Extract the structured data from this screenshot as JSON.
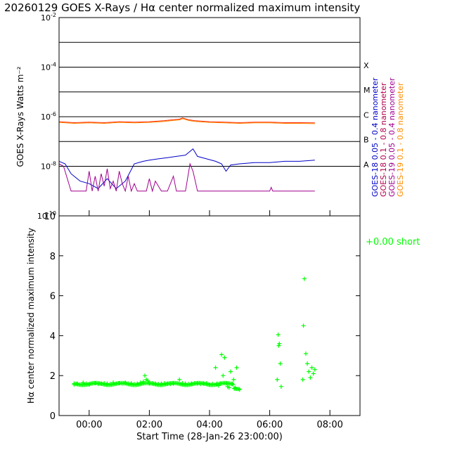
{
  "title": "20260129 GOES X-Rays / Hα center normalized maximum intensity",
  "colors": {
    "goes18_long": "#0000c8",
    "goes18_short": "#b0004a",
    "goes19_long": "#a00090",
    "goes19_short": "#ff8c00",
    "overlay_red": "#ff2000",
    "halpha": "#00ff00",
    "axis": "#000000"
  },
  "chart_data": [
    {
      "type": "line",
      "title": "GOES X-Rays",
      "ylabel": "GOES X-Rays Watts m⁻²",
      "yscale": "log",
      "ylim_exp": [
        -10,
        -2
      ],
      "ytick_labels": [
        {
          "base": "10",
          "exp": "-2",
          "value_exp": -2
        },
        {
          "base": "10",
          "exp": "-4",
          "value_exp": -4
        },
        {
          "base": "10",
          "exp": "-6",
          "value_exp": -6
        },
        {
          "base": "10",
          "exp": "-8",
          "value_exp": -8
        },
        {
          "base": "10",
          "exp": "-10",
          "value_exp": -10
        }
      ],
      "flare_class_labels": [
        {
          "label": "X",
          "value_exp": -3.9
        },
        {
          "label": "M",
          "value_exp": -4.9
        },
        {
          "label": "C",
          "value_exp": -5.9
        },
        {
          "label": "B",
          "value_exp": -6.9
        },
        {
          "label": "A",
          "value_exp": -7.9
        }
      ],
      "gridlines_exp": [
        -3,
        -4,
        -5,
        -6,
        -7,
        -8
      ],
      "xlim_hours": [
        -1.0,
        9.0
      ],
      "legend": [
        "GOES-18 0.05 - 0.4 nanometer",
        "GOES-18 0.1 - 0.8 nanometer",
        "GOES-19 0.05 - 0.4 nanometer",
        "GOES-19 0.1 - 0.8 nanometer"
      ],
      "series": [
        {
          "name": "GOES-18 0.1 - 0.8 nanometer",
          "color_key": "overlay_red",
          "x": [
            -1.0,
            -0.5,
            0.0,
            0.5,
            1.0,
            1.5,
            2.0,
            2.5,
            2.8,
            3.0,
            3.1,
            3.3,
            3.5,
            4.0,
            4.5,
            5.0,
            5.5,
            6.0,
            6.5,
            7.0,
            7.5
          ],
          "y_exp": [
            -6.2,
            -6.24,
            -6.22,
            -6.24,
            -6.2,
            -6.22,
            -6.2,
            -6.16,
            -6.12,
            -6.1,
            -6.05,
            -6.12,
            -6.16,
            -6.2,
            -6.22,
            -6.24,
            -6.22,
            -6.22,
            -6.24,
            -6.24,
            -6.25
          ]
        },
        {
          "name": "GOES-19 0.1 - 0.8 nanometer",
          "color_key": "goes19_short",
          "x": [
            -1.0,
            -0.5,
            0.0,
            0.5,
            1.0,
            1.5,
            2.0,
            2.5,
            2.8,
            3.0,
            3.1,
            3.3,
            3.5,
            4.0,
            4.5,
            5.0,
            5.5,
            6.0,
            6.5,
            7.0,
            7.5
          ],
          "y_exp": [
            -6.23,
            -6.27,
            -6.25,
            -6.27,
            -6.23,
            -6.25,
            -6.23,
            -6.19,
            -6.15,
            -6.13,
            -6.08,
            -6.15,
            -6.19,
            -6.23,
            -6.25,
            -6.27,
            -6.25,
            -6.25,
            -6.27,
            -6.27,
            -6.28
          ]
        },
        {
          "name": "GOES-18 0.05 - 0.4 nanometer",
          "color_key": "goes18_long",
          "x": [
            -1.0,
            -0.8,
            -0.6,
            -0.3,
            0.0,
            0.3,
            0.6,
            0.9,
            1.2,
            1.5,
            1.8,
            2.0,
            2.3,
            2.6,
            2.9,
            3.2,
            3.45,
            3.6,
            3.9,
            4.2,
            4.4,
            4.55,
            4.7,
            5.0,
            5.5,
            6.0,
            6.5,
            7.0,
            7.5
          ],
          "y_exp": [
            -7.8,
            -7.9,
            -8.3,
            -8.6,
            -8.7,
            -8.9,
            -8.5,
            -8.9,
            -8.6,
            -7.9,
            -7.8,
            -7.75,
            -7.7,
            -7.65,
            -7.6,
            -7.55,
            -7.3,
            -7.6,
            -7.7,
            -7.8,
            -7.9,
            -8.2,
            -7.95,
            -7.9,
            -7.85,
            -7.85,
            -7.8,
            -7.8,
            -7.75
          ]
        },
        {
          "name": "GOES-19 0.05 - 0.4 nanometer",
          "color_key": "goes19_long",
          "x": [
            -1.0,
            -0.85,
            -0.7,
            -0.6,
            -0.5,
            -0.4,
            -0.3,
            -0.2,
            -0.1,
            0.0,
            0.1,
            0.2,
            0.3,
            0.4,
            0.5,
            0.6,
            0.7,
            0.8,
            0.9,
            1.0,
            1.1,
            1.2,
            1.3,
            1.4,
            1.5,
            1.6,
            1.65,
            1.9,
            2.0,
            2.1,
            2.2,
            2.4,
            2.6,
            2.8,
            2.9,
            3.0,
            3.2,
            3.35,
            3.45,
            3.6,
            3.8,
            4.0,
            4.5,
            5.0,
            6.0,
            6.05,
            6.1,
            6.3,
            7.0,
            7.5
          ],
          "y_exp": [
            -7.9,
            -8.0,
            -8.6,
            -9.0,
            -9.0,
            -9.0,
            -9.0,
            -9.0,
            -9.0,
            -8.2,
            -9.0,
            -8.4,
            -9.0,
            -8.3,
            -8.8,
            -8.1,
            -8.9,
            -8.6,
            -9.0,
            -8.2,
            -8.7,
            -9.0,
            -8.4,
            -9.0,
            -8.7,
            -9.0,
            -9.0,
            -9.0,
            -8.5,
            -9.0,
            -8.6,
            -9.0,
            -9.0,
            -8.4,
            -9.0,
            -9.0,
            -9.0,
            -7.9,
            -8.2,
            -9.0,
            -9.0,
            -9.0,
            -9.0,
            -9.0,
            -9.0,
            -8.85,
            -9.0,
            -9.0,
            -9.0,
            -9.0
          ]
        }
      ]
    },
    {
      "type": "scatter",
      "title": "Hα center normalized maximum intensity",
      "xlabel": "Start Time (28-Jan-26 23:00:00)",
      "ylabel": "Hα center normalized maximum intensity",
      "xlim_hours": [
        -1.0,
        9.0
      ],
      "ylim": [
        0,
        10
      ],
      "yticks": [
        0,
        2,
        4,
        6,
        8,
        10
      ],
      "xticks": [
        {
          "label": "00:00",
          "value": 0
        },
        {
          "label": "02:00",
          "value": 2
        },
        {
          "label": "04:00",
          "value": 4
        },
        {
          "label": "06:00",
          "value": 6
        },
        {
          "label": "08:00",
          "value": 8
        }
      ],
      "legend": [
        "+0.00 short"
      ],
      "marker": "+",
      "points": {
        "x": [
          -0.5,
          -0.4,
          -0.3,
          -0.2,
          -0.1,
          0.0,
          0.1,
          0.2,
          0.3,
          0.4,
          0.5,
          0.6,
          0.7,
          0.8,
          0.9,
          1.0,
          1.1,
          1.2,
          1.3,
          1.4,
          1.5,
          1.6,
          1.7,
          1.8,
          1.85,
          1.9,
          1.95,
          2.0,
          2.1,
          2.2,
          2.3,
          2.4,
          2.5,
          2.6,
          2.7,
          2.8,
          2.9,
          3.0,
          3.1,
          3.2,
          3.3,
          3.4,
          3.5,
          3.6,
          3.7,
          3.8,
          3.9,
          4.0,
          4.1,
          4.2,
          4.25,
          4.3,
          4.35,
          4.4,
          4.45,
          4.5,
          4.55,
          4.6,
          4.65,
          4.7,
          4.75,
          4.8,
          4.85,
          4.9,
          5.0,
          6.25,
          6.28,
          6.3,
          6.32,
          6.35,
          6.38,
          7.1,
          7.12,
          7.15,
          7.2,
          7.25,
          7.3,
          7.35,
          7.4,
          7.45,
          7.5
        ],
        "y": [
          1.55,
          1.6,
          1.55,
          1.65,
          1.6,
          1.55,
          1.6,
          1.62,
          1.58,
          1.6,
          1.62,
          1.6,
          1.58,
          1.65,
          1.6,
          1.62,
          1.6,
          1.65,
          1.6,
          1.62,
          1.58,
          1.6,
          1.65,
          1.7,
          2.0,
          1.8,
          1.75,
          1.6,
          1.62,
          1.6,
          1.58,
          1.6,
          1.62,
          1.6,
          1.58,
          1.6,
          1.62,
          1.8,
          1.62,
          1.6,
          1.58,
          1.6,
          1.62,
          1.6,
          1.58,
          1.6,
          1.62,
          1.55,
          1.58,
          2.4,
          1.6,
          1.5,
          1.6,
          3.05,
          2.0,
          2.9,
          1.6,
          1.45,
          1.4,
          2.2,
          1.6,
          1.8,
          1.4,
          2.4,
          1.3,
          1.8,
          4.05,
          3.5,
          3.6,
          2.6,
          1.45,
          1.8,
          4.5,
          6.85,
          3.1,
          2.6,
          2.2,
          1.9,
          2.4,
          2.1,
          2.3
        ]
      }
    }
  ]
}
